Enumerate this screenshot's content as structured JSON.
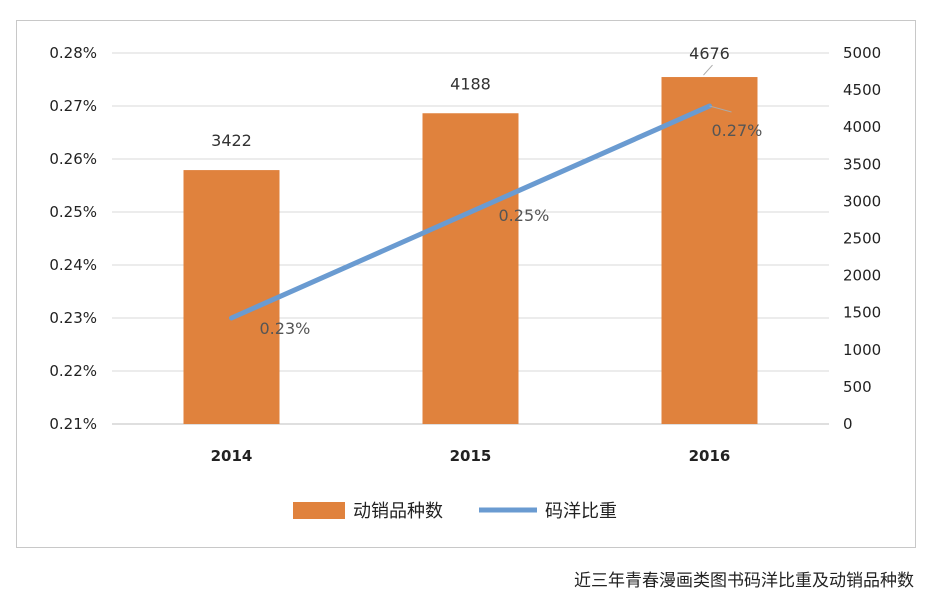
{
  "chart_data": {
    "type": "bar",
    "categories": [
      "2014",
      "2015",
      "2016"
    ],
    "series": [
      {
        "name": "动销品种数",
        "type": "bar",
        "axis": "right",
        "values": [
          3422,
          4188,
          4676
        ],
        "labels": [
          "3422",
          "4188",
          "4676"
        ],
        "color": "#e0823d"
      },
      {
        "name": "码洋比重",
        "type": "line",
        "axis": "left",
        "values": [
          0.23,
          0.25,
          0.27
        ],
        "labels": [
          "0.23%",
          "0.25%",
          "0.27%"
        ],
        "color": "#6a9bd1"
      }
    ],
    "y_left": {
      "min": 0.21,
      "max": 0.28,
      "ticks": [
        "0.28%",
        "0.27%",
        "0.26%",
        "0.25%",
        "0.24%",
        "0.23%",
        "0.22%",
        "0.21%"
      ]
    },
    "y_right": {
      "min": 0,
      "max": 5000,
      "ticks": [
        "5000",
        "4500",
        "4000",
        "3500",
        "3000",
        "2500",
        "2000",
        "1500",
        "1000",
        "500",
        "0"
      ]
    },
    "grid": true,
    "legend_position": "bottom"
  },
  "caption": "近三年青春漫画类图书码洋比重及动销品种数"
}
